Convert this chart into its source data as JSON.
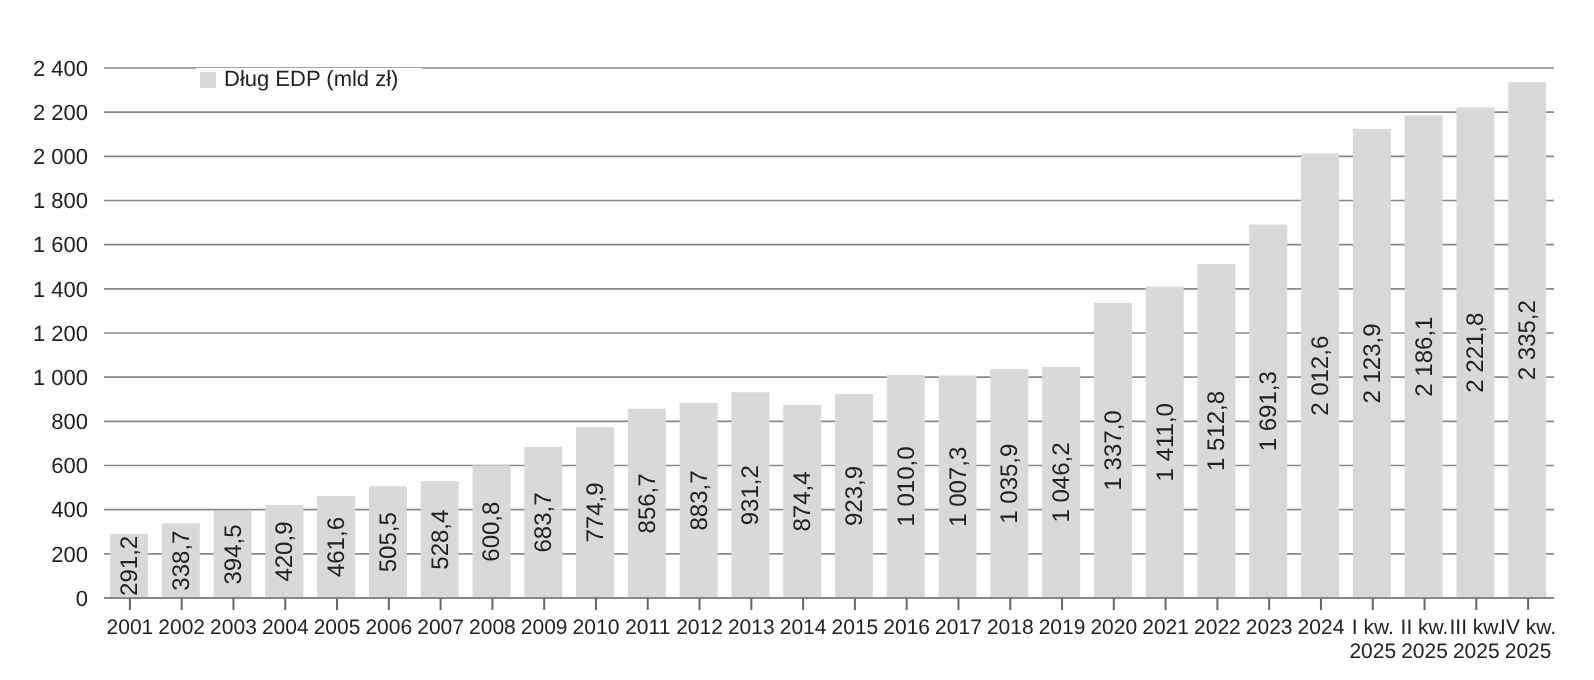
{
  "chart_data": {
    "type": "bar",
    "categories": [
      "2001",
      "2002",
      "2003",
      "2004",
      "2005",
      "2006",
      "2007",
      "2008",
      "2009",
      "2010",
      "2011",
      "2012",
      "2013",
      "2014",
      "2015",
      "2016",
      "2017",
      "2018",
      "2019",
      "2020",
      "2021",
      "2022",
      "2023",
      "2024",
      "I kw. 2025",
      "II kw. 2025",
      "III kw. 2025",
      "IV kw. 2025"
    ],
    "series": [
      {
        "name": "Dług EDP (mld zł)",
        "color": "#d9d9d9",
        "values": [
          291.2,
          338.7,
          394.5,
          420.9,
          461.6,
          505.5,
          528.4,
          600.8,
          683.7,
          774.9,
          856.7,
          883.7,
          931.2,
          874.4,
          923.9,
          1010.0,
          1007.3,
          1035.9,
          1046.2,
          1337.0,
          1411.0,
          1512.8,
          1691.3,
          2012.6,
          2123.9,
          2186.1,
          2221.8,
          2335.2
        ],
        "value_labels": [
          "291,2",
          "338,7",
          "394,5",
          "420,9",
          "461,6",
          "505,5",
          "528,4",
          "600,8",
          "683,7",
          "774,9",
          "856,7",
          "883,7",
          "931,2",
          "874,4",
          "923,9",
          "1 010,0",
          "1 007,3",
          "1 035,9",
          "1 046,2",
          "1 337,0",
          "1 411,0",
          "1 512,8",
          "1 691,3",
          "2 012,6",
          "2 123,9",
          "2 186,1",
          "2 221,8",
          "2 335,2"
        ]
      }
    ],
    "ylim": [
      0,
      2400
    ],
    "yticks": [
      0,
      200,
      400,
      600,
      800,
      {
        "value": 1000,
        "label": "1 000"
      },
      {
        "value": 1200,
        "label": "1 200"
      },
      {
        "value": 1400,
        "label": "1 400"
      },
      {
        "value": 1600,
        "label": "1 600"
      },
      {
        "value": 1800,
        "label": "1 800"
      },
      {
        "value": 2000,
        "label": "2 000"
      },
      {
        "value": 2200,
        "label": "2 200"
      },
      {
        "value": 2400,
        "label": "2 400"
      }
    ],
    "grid": "y",
    "legend": "top left"
  }
}
